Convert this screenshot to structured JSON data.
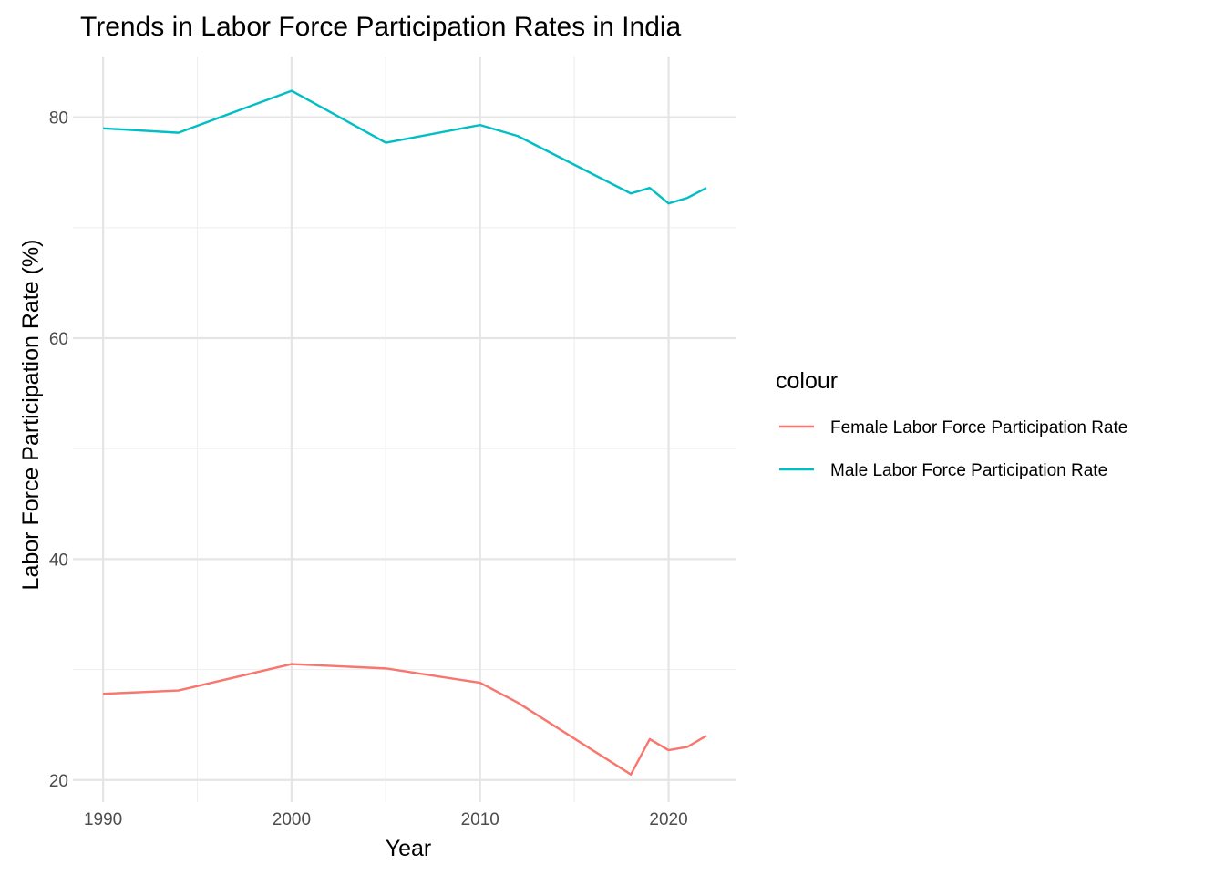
{
  "chart_data": {
    "type": "line",
    "title": "Trends in Labor Force Participation Rates in India",
    "xlabel": "Year",
    "ylabel": "Labor Force Participation Rate (%)",
    "xlim": [
      1988.4,
      2023.6
    ],
    "ylim": [
      18,
      85.5
    ],
    "x_ticks": [
      1990,
      2000,
      2010,
      2020
    ],
    "y_ticks": [
      20,
      40,
      60,
      80
    ],
    "x_minor": [
      1995,
      2005,
      2015
    ],
    "y_minor": [
      30,
      50,
      70
    ],
    "grid": true,
    "legend": {
      "title": "colour",
      "position": "right"
    },
    "series": [
      {
        "name": "Female Labor Force Participation Rate",
        "color": "#F8766D",
        "x": [
          1990,
          1994,
          2000,
          2005,
          2010,
          2012,
          2018,
          2019,
          2020,
          2021,
          2022
        ],
        "y": [
          27.8,
          28.1,
          30.5,
          30.1,
          28.8,
          27.0,
          20.5,
          23.7,
          22.7,
          23.0,
          24.0
        ]
      },
      {
        "name": "Male Labor Force Participation Rate",
        "color": "#00BFC4",
        "x": [
          1990,
          1994,
          2000,
          2005,
          2010,
          2012,
          2018,
          2019,
          2020,
          2021,
          2022
        ],
        "y": [
          79.0,
          78.6,
          82.4,
          77.7,
          79.3,
          78.3,
          73.1,
          73.6,
          72.2,
          72.7,
          73.6
        ]
      }
    ]
  }
}
